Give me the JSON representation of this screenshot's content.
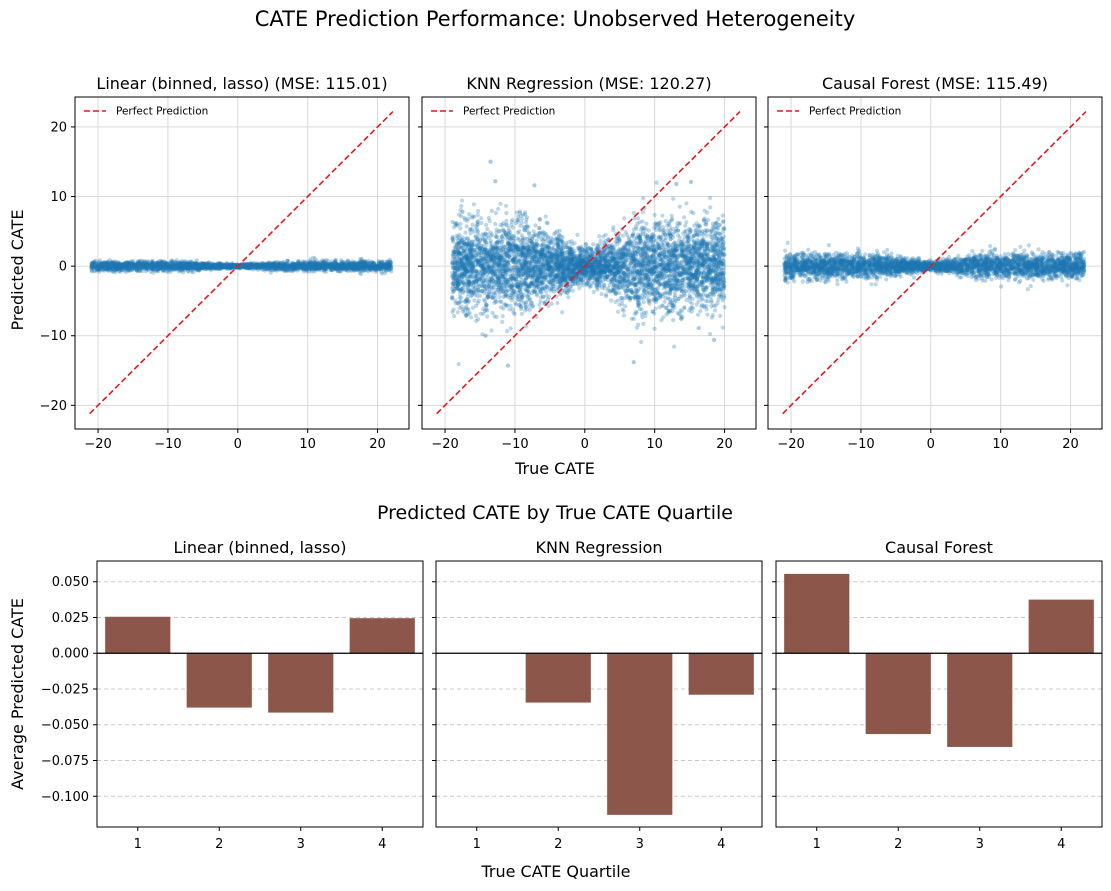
{
  "figure": {
    "title": "CATE Prediction Performance: Unobserved Heterogeneity",
    "bottom_title": "Predicted CATE by True CATE Quartile",
    "scatter_xlabel": "True CATE",
    "scatter_ylabel": "Predicted CATE",
    "bar_xlabel": "True CATE Quartile",
    "bar_ylabel": "Average Predicted CATE",
    "legend_label": "Perfect Prediction"
  },
  "colors": {
    "scatter_point": "#1f77b4",
    "reference_line": "#e41a1c",
    "bar": "#8c564b"
  },
  "chart_data": [
    {
      "type": "scatter",
      "title": "Linear (binned, lasso) (MSE: 115.01)",
      "model": "Linear (binned, lasso)",
      "mse": 115.01,
      "xlim": [
        -23.3,
        24.5
      ],
      "ylim": [
        -23.4,
        24.3
      ],
      "xticks": [
        -20,
        -10,
        0,
        10,
        20
      ],
      "yticks": [
        -20,
        -10,
        0,
        10,
        20
      ],
      "clusters": [
        {
          "x_range": [
            -21,
            0
          ],
          "y_center": 0.0,
          "y_spread": 0.35,
          "count": 1400
        },
        {
          "x_range": [
            0,
            22
          ],
          "y_center": 0.0,
          "y_spread": 0.35,
          "count": 1400
        }
      ],
      "reference_line": {
        "x": [
          -21.2,
          22.2
        ],
        "y": [
          -21.2,
          22.2
        ]
      },
      "grid": true,
      "legend": "upper left"
    },
    {
      "type": "scatter",
      "title": "KNN Regression (MSE: 120.27)",
      "model": "KNN Regression",
      "mse": 120.27,
      "xlim": [
        -23.3,
        24.5
      ],
      "ylim": [
        -23.4,
        24.3
      ],
      "xticks": [
        -20,
        -10,
        0,
        10,
        20
      ],
      "yticks": [
        -20,
        -10,
        0,
        10,
        20
      ],
      "clusters": [
        {
          "x_range": [
            -19,
            0
          ],
          "y_center": 0.0,
          "y_spread": 3.2,
          "count": 2600
        },
        {
          "x_range": [
            0,
            20
          ],
          "y_center": 0.0,
          "y_spread": 3.2,
          "count": 2600
        }
      ],
      "outliers": [
        {
          "x": -13.5,
          "y": 15.0
        },
        {
          "x": -12.8,
          "y": 12.2
        },
        {
          "x": -7.2,
          "y": 11.6
        },
        {
          "x": 15.2,
          "y": 12.1
        },
        {
          "x": 13.1,
          "y": 11.8
        },
        {
          "x": 7.0,
          "y": -13.8
        },
        {
          "x": -14.2,
          "y": -10.0
        },
        {
          "x": 18.5,
          "y": -10.6
        },
        {
          "x": 16.3,
          "y": -8.9
        },
        {
          "x": -17.5,
          "y": 7.8
        },
        {
          "x": -11.0,
          "y": -14.3
        }
      ],
      "reference_line": {
        "x": [
          -21.2,
          22.2
        ],
        "y": [
          -21.2,
          22.2
        ]
      },
      "grid": true,
      "legend": "upper left"
    },
    {
      "type": "scatter",
      "title": "Causal Forest (MSE: 115.49)",
      "model": "Causal Forest",
      "mse": 115.49,
      "xlim": [
        -23.3,
        24.5
      ],
      "ylim": [
        -23.4,
        24.3
      ],
      "xticks": [
        -20,
        -10,
        0,
        10,
        20
      ],
      "yticks": [
        -20,
        -10,
        0,
        10,
        20
      ],
      "clusters": [
        {
          "x_range": [
            -21,
            0
          ],
          "y_center": 0.0,
          "y_spread": 0.9,
          "count": 1800
        },
        {
          "x_range": [
            0,
            22
          ],
          "y_center": 0.0,
          "y_spread": 0.9,
          "count": 1800
        }
      ],
      "reference_line": {
        "x": [
          -21.2,
          22.2
        ],
        "y": [
          -21.2,
          22.2
        ]
      },
      "grid": true,
      "legend": "upper left"
    },
    {
      "type": "bar",
      "title": "Linear (binned, lasso)",
      "categories": [
        "1",
        "2",
        "3",
        "4"
      ],
      "values": [
        0.0255,
        -0.038,
        -0.0415,
        0.0245
      ],
      "ylim": [
        -0.1215,
        0.0645
      ],
      "yticks": [
        0.05,
        0.025,
        0.0,
        -0.025,
        -0.05,
        -0.075,
        -0.1
      ],
      "ytick_labels": [
        "0.050",
        "0.025",
        "0.000",
        "−0.025",
        "−0.050",
        "−0.075",
        "−0.100"
      ],
      "grid": "y-dashed"
    },
    {
      "type": "bar",
      "title": "KNN Regression",
      "categories": [
        "1",
        "2",
        "3",
        "4"
      ],
      "values": [
        0.0,
        -0.0345,
        -0.113,
        -0.029
      ],
      "ylim": [
        -0.1215,
        0.0645
      ],
      "yticks": [
        0.05,
        0.025,
        0.0,
        -0.025,
        -0.05,
        -0.075,
        -0.1
      ],
      "grid": "y-dashed"
    },
    {
      "type": "bar",
      "title": "Causal Forest",
      "categories": [
        "1",
        "2",
        "3",
        "4"
      ],
      "values": [
        0.0555,
        -0.0565,
        -0.0655,
        0.0375
      ],
      "ylim": [
        -0.1215,
        0.0645
      ],
      "yticks": [
        0.05,
        0.025,
        0.0,
        -0.025,
        -0.05,
        -0.075,
        -0.1
      ],
      "grid": "y-dashed"
    }
  ]
}
